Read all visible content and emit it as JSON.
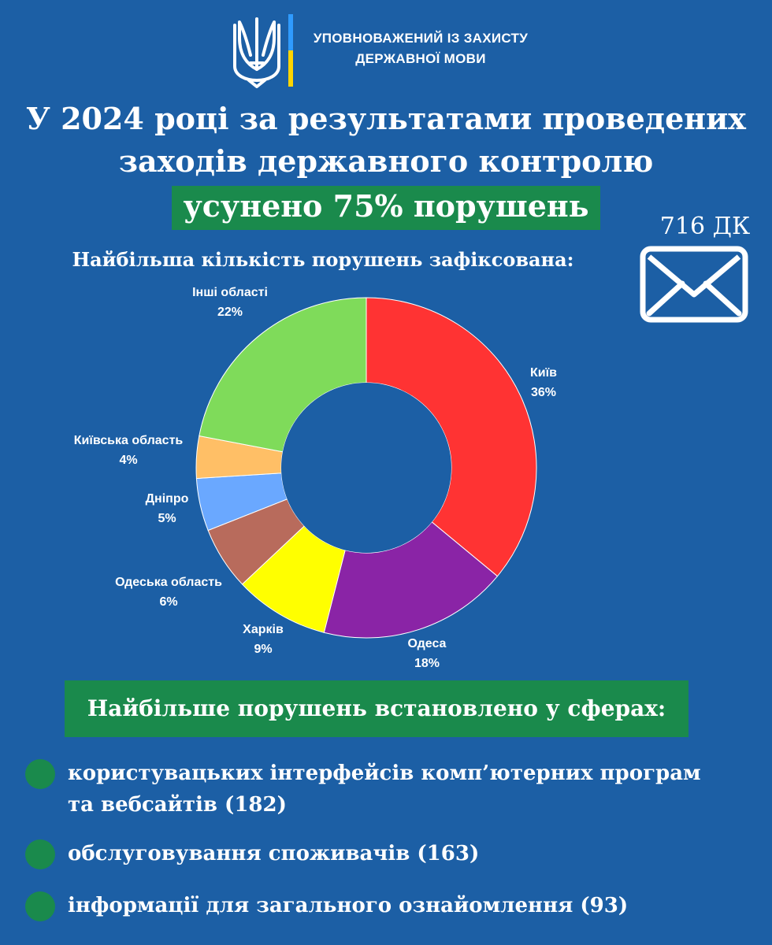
{
  "header": {
    "org_line1": "УПОВНОВАЖЕНИЙ ІЗ ЗАХИСТУ",
    "org_line2": "ДЕРЖАВНОЇ МОВИ",
    "emblem_icon": "trident-icon",
    "flag_colors": [
      "#2f9bff",
      "#ffd500"
    ]
  },
  "title": {
    "line1": "У 2024 році за результатами проведених",
    "line2": "заходів державного контролю",
    "highlight": "усунено 75% порушень"
  },
  "side": {
    "dk_text": "716 ДК",
    "icon": "envelope-icon"
  },
  "chart_title": "Найбільша кількість порушень зафіксована:",
  "chart_data": {
    "type": "pie",
    "variant": "donut",
    "title": "Найбільша кількість порушень зафіксована:",
    "slices": [
      {
        "label": "Київ",
        "value": 36,
        "value_label": "36%",
        "color": "#ff3333"
      },
      {
        "label": "Одеса",
        "value": 18,
        "value_label": "18%",
        "color": "#8a24a6"
      },
      {
        "label": "Харків",
        "value": 9,
        "value_label": "9%",
        "color": "#ffff00"
      },
      {
        "label": "Одеська область",
        "value": 6,
        "value_label": "6%",
        "color": "#b86b5c"
      },
      {
        "label": "Дніпро",
        "value": 5,
        "value_label": "5%",
        "color": "#6aa8ff"
      },
      {
        "label": "Київська область",
        "value": 4,
        "value_label": "4%",
        "color": "#ffbf66"
      },
      {
        "label": "Інші області",
        "value": 22,
        "value_label": "22%",
        "color": "#7fdb5a"
      }
    ]
  },
  "spheres": {
    "heading": "Найбільше порушень встановлено у сферах:",
    "items": [
      {
        "line1": "користувацьких інтерфейсів комп’ютерних програм",
        "line2": "та вебсайтів (182)"
      },
      {
        "line1": "обслуговування споживачів (163)"
      },
      {
        "line1": "інформації для загального ознайомлення (93)"
      }
    ]
  }
}
